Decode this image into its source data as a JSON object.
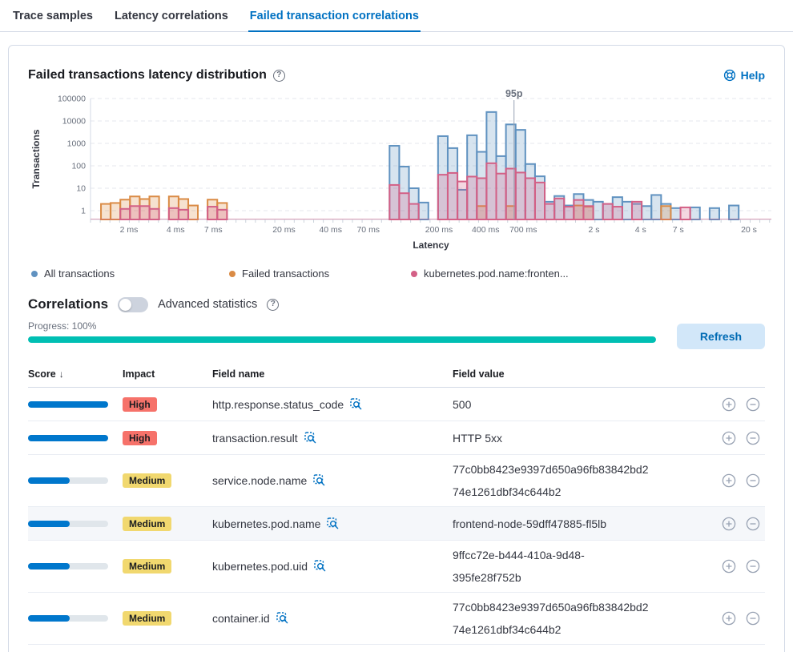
{
  "tabs": [
    {
      "label": "Trace samples",
      "active": false
    },
    {
      "label": "Latency correlations",
      "active": false
    },
    {
      "label": "Failed transaction correlations",
      "active": true
    }
  ],
  "chart_section": {
    "title": "Failed transactions latency distribution",
    "help_label": "Help"
  },
  "chart_data": {
    "type": "bar",
    "subtype": "latency histogram, log x / log y",
    "title": "Failed transactions latency distribution",
    "xlabel": "Latency",
    "ylabel": "Transactions",
    "x_scale": "log",
    "y_scale": "log",
    "x_range_ms": [
      1.13,
      27900
    ],
    "ylim": [
      1,
      100000
    ],
    "y_ticks": [
      1,
      10,
      100,
      1000,
      10000,
      100000
    ],
    "x_ticks": [
      {
        "ms": 2,
        "label": "2 ms"
      },
      {
        "ms": 4,
        "label": "4 ms"
      },
      {
        "ms": 7,
        "label": "7 ms"
      },
      {
        "ms": 20,
        "label": "20 ms"
      },
      {
        "ms": 40,
        "label": "40 ms"
      },
      {
        "ms": 70,
        "label": "70 ms"
      },
      {
        "ms": 200,
        "label": "200 ms"
      },
      {
        "ms": 400,
        "label": "400 ms"
      },
      {
        "ms": 700,
        "label": "700 ms"
      },
      {
        "ms": 2000,
        "label": "2 s"
      },
      {
        "ms": 4000,
        "label": "4 s"
      },
      {
        "ms": 7000,
        "label": "7 s"
      },
      {
        "ms": 20000,
        "label": "20 s"
      }
    ],
    "bin_ratio": 1.155,
    "grid": "dashed horizontal",
    "legend_position": "bottom",
    "annotation": {
      "label": "95p",
      "x_ms": 610
    },
    "series": [
      {
        "name": "All transactions",
        "color": "#6092C0",
        "bars": [
          [
            96,
            780
          ],
          [
            110.9,
            92
          ],
          [
            128.1,
            10
          ],
          [
            147.9,
            2.3
          ],
          [
            197.3,
            2100
          ],
          [
            227.9,
            615
          ],
          [
            263.2,
            8.5
          ],
          [
            304,
            2300
          ],
          [
            351.1,
            420
          ],
          [
            405.5,
            25000
          ],
          [
            468.3,
            270
          ],
          [
            540.9,
            7000
          ],
          [
            624.7,
            4000
          ],
          [
            721.5,
            120
          ],
          [
            833.3,
            34
          ],
          [
            962.4,
            2.5
          ],
          [
            1111.5,
            4.5
          ],
          [
            1283.7,
            1.7
          ],
          [
            1482.6,
            5.5
          ],
          [
            1712.4,
            3
          ],
          [
            1977.7,
            2.5
          ],
          [
            2284.2,
            2
          ],
          [
            2638.2,
            4
          ],
          [
            3047,
            2.5
          ],
          [
            3519.2,
            2
          ],
          [
            4064.6,
            1.6
          ],
          [
            4694.5,
            5
          ],
          [
            5422,
            2
          ],
          [
            6262.2,
            1.3
          ],
          [
            8353.4,
            1.4
          ],
          [
            11143.3,
            1.3
          ],
          [
            14864.8,
            1.7
          ]
        ]
      },
      {
        "name": "Failed transactions",
        "color": "#DA8B45",
        "bars": [
          [
            1.32,
            2
          ],
          [
            1.52,
            2.2
          ],
          [
            1.76,
            3.1
          ],
          [
            2.03,
            4.3
          ],
          [
            2.35,
            3.3
          ],
          [
            2.71,
            4.3
          ],
          [
            3.62,
            4.3
          ],
          [
            4.18,
            3.3
          ],
          [
            4.82,
            1.7
          ],
          [
            6.43,
            3.1
          ],
          [
            7.43,
            2.2
          ],
          [
            351.1,
            1.6
          ],
          [
            540.9,
            1.6
          ],
          [
            1482.6,
            1.7
          ],
          [
            1712.4,
            1.5
          ],
          [
            5422,
            1.6
          ]
        ]
      },
      {
        "name": "kubernetes.pod.name:fronten...",
        "color": "#D36086",
        "bars": [
          [
            1.76,
            1.2
          ],
          [
            2.03,
            1.6
          ],
          [
            2.35,
            1.6
          ],
          [
            2.71,
            1.2
          ],
          [
            3.62,
            1.3
          ],
          [
            4.18,
            1.1
          ],
          [
            6.43,
            1.5
          ],
          [
            7.43,
            1.1
          ],
          [
            96,
            14
          ],
          [
            110.9,
            6
          ],
          [
            128.1,
            2
          ],
          [
            197.3,
            40
          ],
          [
            227.9,
            48
          ],
          [
            263.2,
            20
          ],
          [
            304,
            33
          ],
          [
            351.1,
            28
          ],
          [
            405.5,
            130
          ],
          [
            468.3,
            45
          ],
          [
            540.9,
            75
          ],
          [
            624.7,
            50
          ],
          [
            721.5,
            28
          ],
          [
            833.3,
            18
          ],
          [
            962.4,
            2
          ],
          [
            1111.5,
            3.5
          ],
          [
            1283.7,
            1.5
          ],
          [
            1482.6,
            3
          ],
          [
            1712.4,
            1.6
          ],
          [
            2284.2,
            2
          ],
          [
            2638.2,
            1.5
          ],
          [
            3519.2,
            2.5
          ],
          [
            7232.6,
            1.4
          ]
        ]
      }
    ]
  },
  "legend": [
    {
      "label": "All transactions",
      "color": "#6092C0"
    },
    {
      "label": "Failed transactions",
      "color": "#DA8B45"
    },
    {
      "label": "kubernetes.pod.name:fronten...",
      "color": "#D36086"
    }
  ],
  "correlations": {
    "heading": "Correlations",
    "toggle_label": "Advanced statistics",
    "toggle_on": false,
    "progress_label": "Progress: 100%",
    "progress_pct": 100,
    "refresh_label": "Refresh"
  },
  "table": {
    "columns": [
      {
        "label": "Score",
        "sorted": "desc"
      },
      {
        "label": "Impact",
        "sorted": null
      },
      {
        "label": "Field name",
        "sorted": null
      },
      {
        "label": "Field value",
        "sorted": null
      }
    ],
    "sort_arrow": "↓",
    "impact_styles": {
      "High": {
        "bg": "#F6726A",
        "text": "#1A1C21"
      },
      "Medium": {
        "bg": "#F1D86F",
        "text": "#1A1C21"
      }
    },
    "score_bar_color": "#0077CC",
    "rows": [
      {
        "score_pct": 100,
        "impact": "High",
        "field_name": "http.response.status_code",
        "field_value": "500",
        "value_lines": [
          "500"
        ],
        "highlighted": false
      },
      {
        "score_pct": 100,
        "impact": "High",
        "field_name": "transaction.result",
        "field_value": "HTTP 5xx",
        "value_lines": [
          "HTTP 5xx"
        ],
        "highlighted": false
      },
      {
        "score_pct": 52,
        "impact": "Medium",
        "field_name": "service.node.name",
        "field_value": "77c0bb8423e9397d650a96fb83842bd274e1261dbf34c644b2",
        "value_lines": [
          "77c0bb8423e9397d650a96fb83842bd2",
          "74e1261dbf34c644b2"
        ],
        "highlighted": false
      },
      {
        "score_pct": 52,
        "impact": "Medium",
        "field_name": "kubernetes.pod.name",
        "field_value": "frontend-node-59dff47885-fl5lb",
        "value_lines": [
          "frontend-node-59dff47885-fl5lb"
        ],
        "highlighted": true
      },
      {
        "score_pct": 52,
        "impact": "Medium",
        "field_name": "kubernetes.pod.uid",
        "field_value": "9ffcc72e-b444-410a-9d48-395fe28f752b",
        "value_lines": [
          "9ffcc72e-b444-410a-9d48-",
          "395fe28f752b"
        ],
        "highlighted": false
      },
      {
        "score_pct": 52,
        "impact": "Medium",
        "field_name": "container.id",
        "field_value": "77c0bb8423e9397d650a96fb83842bd274e1261dbf34c644b2",
        "value_lines": [
          "77c0bb8423e9397d650a96fb83842bd2",
          "74e1261dbf34c644b2"
        ],
        "highlighted": false
      }
    ]
  },
  "icons": {
    "question_glyph": "?"
  },
  "colors": {
    "accent_blue": "#0071C2",
    "progress_teal": "#00BFB3",
    "panel_border": "#D3DAE6",
    "row_highlight": "#F5F7FA",
    "grid_line": "#E4E7ED",
    "axis_text": "#69707D"
  }
}
